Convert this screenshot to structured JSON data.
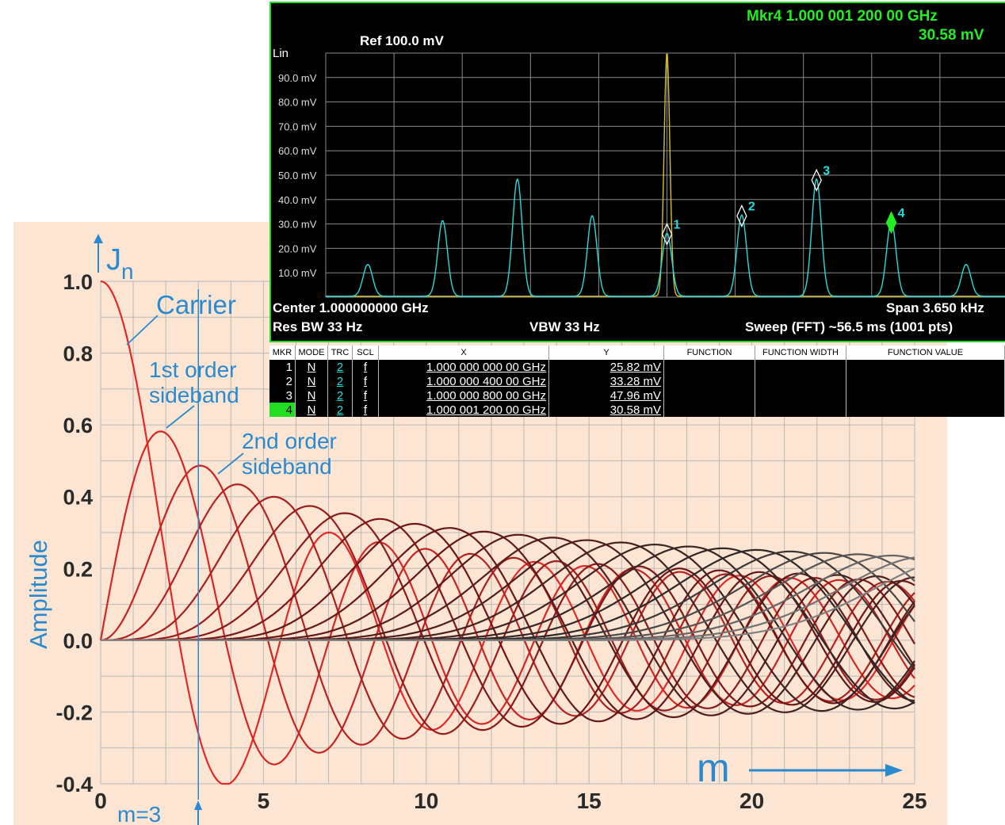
{
  "bessel": {
    "ylabel": "Amplitude",
    "jn_label": "J",
    "jn_sub": "n",
    "m_label": "m",
    "m3_label": "m=3",
    "carrier_label": "Carrier",
    "first_order_label": [
      "1st order",
      "sideband"
    ],
    "second_order_label": [
      "2nd order",
      "sideband"
    ],
    "colors": {
      "background": "#fce6d3",
      "grid": "#b8b8b8",
      "blue": "#2a8ad0",
      "red": "#e02020",
      "dark": "#2a2a2a"
    }
  },
  "analyzer": {
    "marker_readout": "Mkr4 1.000 001 200 00 GHz",
    "marker_value": "30.58 mV",
    "ref_level": "Ref 100.0 mV",
    "scale_mode": "Lin",
    "center": "Center 1.000000000 GHz",
    "span": "Span 3.650 kHz",
    "res_bw": "Res BW 33 Hz",
    "vbw": "VBW 33 Hz",
    "sweep": "Sweep (FFT)  ~56.5 ms (1001 pts)",
    "colors": {
      "screen": "#000000",
      "trace": "#22dddd",
      "carrier_trace": "#d8c020",
      "frame": "#22dd22"
    },
    "table": {
      "headers": [
        "MKR",
        "MODE",
        "TRC",
        "SCL",
        "X",
        "Y",
        "FUNCTION",
        "FUNCTION WIDTH",
        "FUNCTION VALUE"
      ],
      "rows": [
        [
          "1",
          "N",
          "2",
          "f",
          "1.000 000 000 00 GHz",
          "25.82 mV",
          "",
          "",
          ""
        ],
        [
          "2",
          "N",
          "2",
          "f",
          "1.000 000 400 00 GHz",
          "33.28 mV",
          "",
          "",
          ""
        ],
        [
          "3",
          "N",
          "2",
          "f",
          "1.000 000 800 00 GHz",
          "47.96 mV",
          "",
          "",
          ""
        ],
        [
          "4",
          "N",
          "2",
          "f",
          "1.000 001 200 00 GHz",
          "30.58 mV",
          "",
          "",
          ""
        ]
      ]
    }
  },
  "chart_data": [
    {
      "type": "line",
      "title": "",
      "xlabel": "m",
      "ylabel": "Amplitude",
      "xlim": [
        0,
        25
      ],
      "ylim": [
        -0.4,
        1.0
      ],
      "x_ticks": [
        "0",
        "5",
        "10",
        "15",
        "20",
        "25"
      ],
      "y_ticks": [
        "1.0",
        "0.8",
        "0.6",
        "0.4",
        "0.2",
        "0.0",
        "-0.2",
        "-0.4"
      ],
      "function": "Bessel functions of the first kind J_n(m)",
      "series_orders": [
        0,
        1,
        2,
        3,
        4,
        5,
        6,
        7,
        8,
        9,
        10,
        11,
        12,
        13,
        14,
        15,
        16,
        17,
        18,
        19,
        20,
        21,
        22,
        23,
        24
      ],
      "annotations": [
        "Carrier",
        "1st order sideband",
        "2nd order sideband",
        "m=3"
      ],
      "vertical_marker_x": 3
    },
    {
      "type": "line",
      "title": "",
      "xlabel": "",
      "ylabel": "",
      "y_unit": "mV",
      "ylim": [
        0,
        100
      ],
      "y_ticks": [
        "90.0 mV",
        "80.0 mV",
        "70.0 mV",
        "60.0 mV",
        "50.0 mV",
        "40.0 mV",
        "30.0 mV",
        "20.0 mV",
        "10.0 mV"
      ],
      "center_ghz": 1.0,
      "span_khz": 3.65,
      "series": [
        {
          "name": "carrier",
          "color": "#d8c020",
          "x_khz": [
            0.0
          ],
          "values": [
            100
          ]
        },
        {
          "name": "trace 2",
          "color": "#22dddd",
          "x_khz": [
            -1.6,
            -1.2,
            -0.8,
            -0.4,
            0.0,
            0.4,
            0.8,
            1.2,
            1.6
          ],
          "values": [
            13.0,
            31.0,
            48.0,
            33.0,
            25.8,
            33.3,
            48.0,
            30.6,
            13.0
          ]
        }
      ],
      "markers": [
        {
          "label": "1",
          "x_khz": 0.0,
          "value": 25.82
        },
        {
          "label": "2",
          "x_khz": 0.4,
          "value": 33.28
        },
        {
          "label": "3",
          "x_khz": 0.8,
          "value": 47.96
        },
        {
          "label": "4",
          "x_khz": 1.2,
          "value": 30.58,
          "active": true
        }
      ]
    }
  ]
}
